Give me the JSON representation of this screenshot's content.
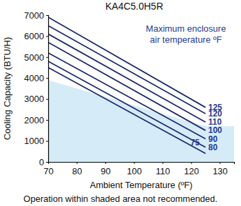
{
  "chart_data": {
    "type": "line",
    "title": "KA4C5.0H5R",
    "x_label": "Ambient Temperature (ºF)",
    "y_label": "Cooling Capacity (BTU/H)",
    "annotation": [
      "Maximum enclosure",
      "air temperature ºF"
    ],
    "footnote": "Operation within shaded area not recommended.",
    "x": [
      70,
      125
    ],
    "series": [
      {
        "name": "125",
        "values": [
          6900,
          2600
        ]
      },
      {
        "name": "120",
        "values": [
          6500,
          2300
        ]
      },
      {
        "name": "110",
        "values": [
          6100,
          1900
        ]
      },
      {
        "name": "100",
        "values": [
          5700,
          1500
        ]
      },
      {
        "name": "90",
        "values": [
          5200,
          1100
        ]
      },
      {
        "name": "80",
        "values": [
          4800,
          700
        ]
      },
      {
        "name": "75",
        "values": [
          4500,
          400
        ]
      }
    ],
    "shaded_region": {
      "x": [
        70,
        125,
        135
      ],
      "values": [
        3900,
        1700,
        1700
      ]
    },
    "color": "#1b2a6b",
    "xlim": [
      70,
      135
    ],
    "xticks": [
      70,
      80,
      90,
      100,
      110,
      120,
      130
    ],
    "ylim": [
      0,
      7000
    ],
    "yticks": [
      0,
      1000,
      2000,
      3000,
      4000,
      5000,
      6000,
      7000
    ],
    "grid": false
  }
}
